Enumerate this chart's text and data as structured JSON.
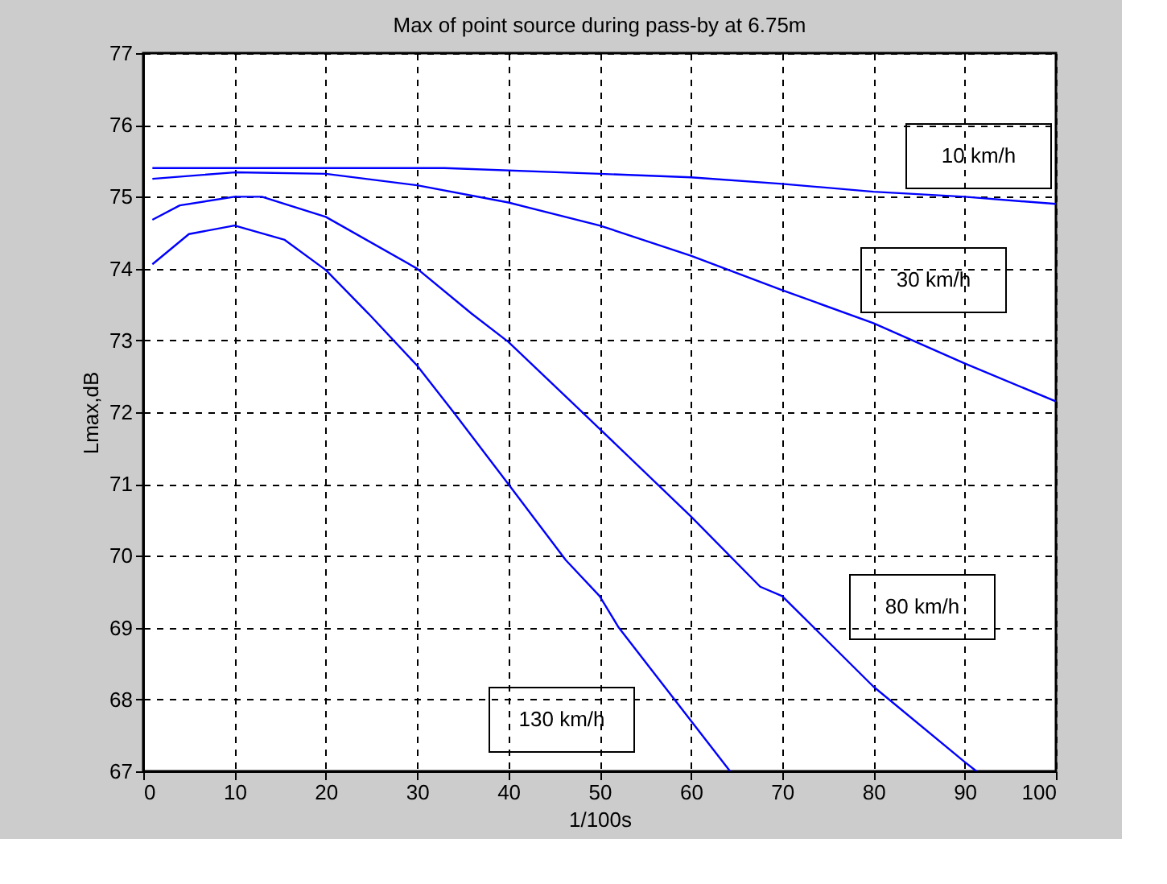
{
  "chart_data": {
    "type": "line",
    "title": "Max of point source during pass-by at 6.75m",
    "xlabel": "1/100s",
    "ylabel": "Lmax,dB",
    "xlim": [
      0,
      100
    ],
    "xticks": [
      0,
      10,
      20,
      30,
      40,
      50,
      60,
      70,
      80,
      90,
      100
    ],
    "ylim": [
      67,
      77
    ],
    "yticks": [
      67,
      68,
      69,
      70,
      71,
      72,
      73,
      74,
      75,
      76,
      77
    ],
    "grid": true,
    "marker": "none",
    "line_style": "solid",
    "series": [
      {
        "color": "#0000ff",
        "x": [
          1,
          10,
          20,
          33,
          50,
          60,
          70,
          80,
          90,
          100
        ],
        "values": [
          75.4,
          75.4,
          75.4,
          75.4,
          75.32,
          75.27,
          75.18,
          75.07,
          75.0,
          74.9
        ]
      },
      {
        "color": "#0000ff",
        "x": [
          1,
          10,
          20,
          30,
          40,
          50,
          60,
          70,
          80,
          90,
          100
        ],
        "values": [
          75.25,
          75.34,
          75.32,
          75.16,
          74.92,
          74.6,
          74.18,
          73.7,
          73.24,
          72.68,
          72.15
        ]
      },
      {
        "color": "#0000ff",
        "x": [
          1,
          4,
          10,
          13,
          20,
          30,
          36,
          40,
          50,
          60,
          67.6,
          70,
          80,
          90,
          91.3
        ],
        "values": [
          74.68,
          74.88,
          75.0,
          75.0,
          74.72,
          74.0,
          73.37,
          72.98,
          71.77,
          70.55,
          69.57,
          69.44,
          68.18,
          67.13,
          67.0
        ]
      },
      {
        "color": "#0000ff",
        "x": [
          1,
          5,
          10,
          15.5,
          20,
          24.7,
          30,
          34,
          40,
          46.3,
          50,
          52.1,
          58.2,
          64.3
        ],
        "values": [
          74.06,
          74.48,
          74.6,
          74.4,
          73.98,
          73.37,
          72.65,
          72.0,
          71.0,
          69.94,
          69.44,
          69.0,
          68.0,
          67.0
        ]
      }
    ],
    "annotations": [
      "10 km/h",
      "30 km/h",
      "80 km/h",
      "130 km/h"
    ]
  }
}
